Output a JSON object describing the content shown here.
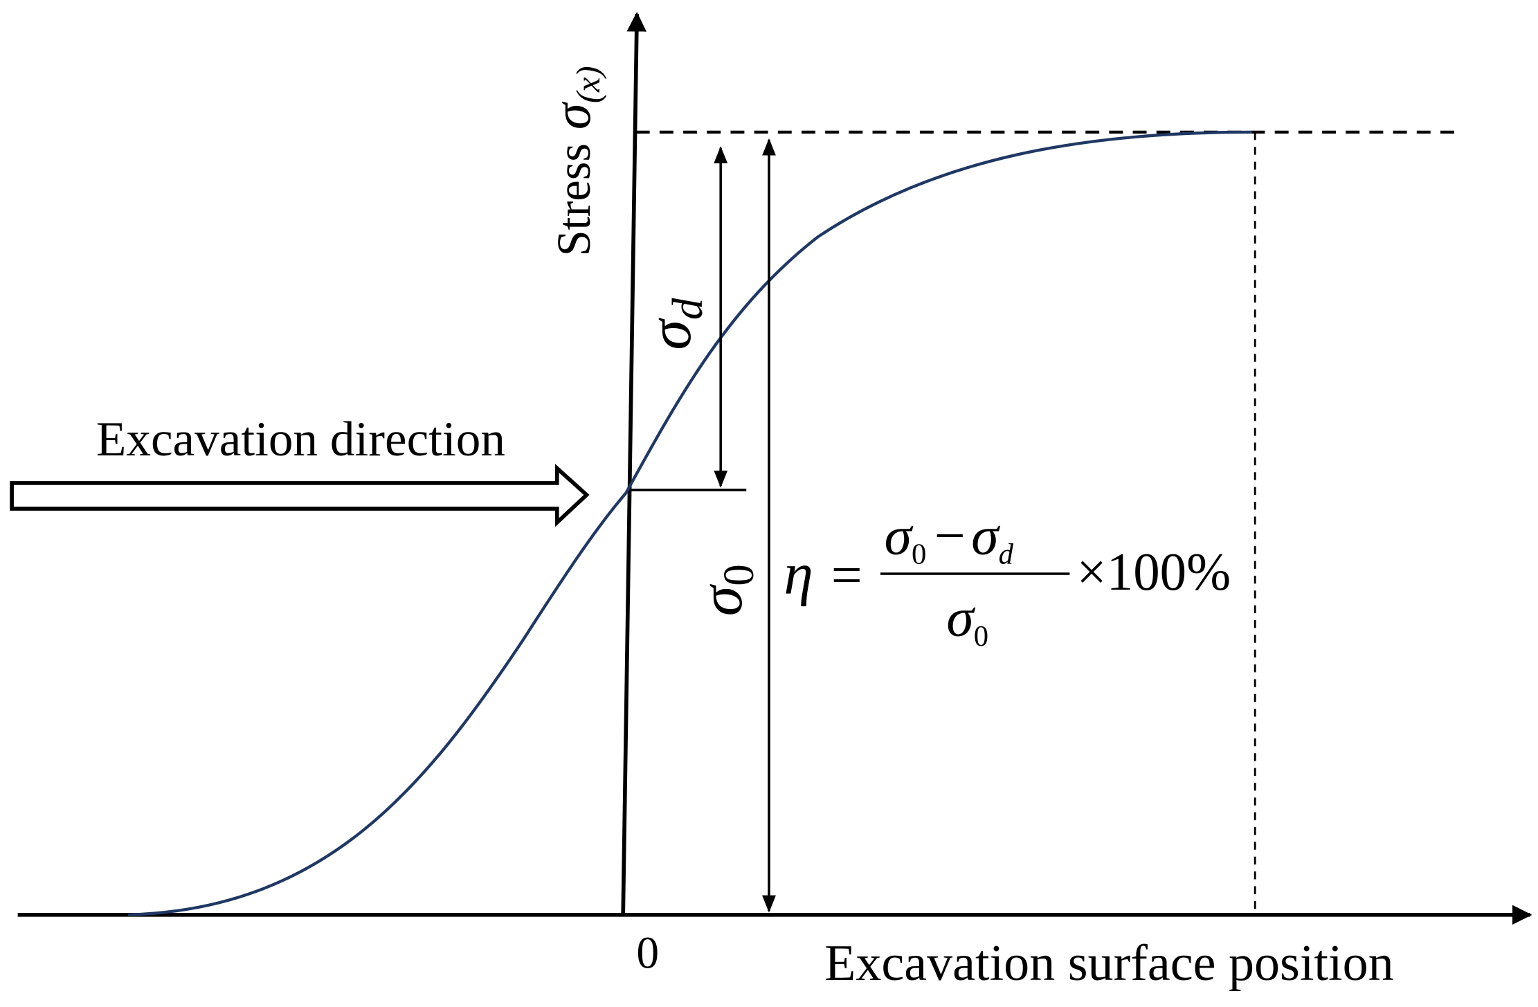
{
  "axes": {
    "y_label": "Stress",
    "y_symbol": "σ",
    "y_symbol_sub": "(x)",
    "x_label": "Excavation surface position",
    "origin": "0"
  },
  "annotations": {
    "sigma_d": {
      "symbol": "σ",
      "sub": "d"
    },
    "sigma_0": {
      "symbol": "σ",
      "sub": "0"
    },
    "direction": "Excavation direction"
  },
  "formula": {
    "lhs": "η",
    "eq": "=",
    "num_a": "σ",
    "num_a_sub": "0",
    "minus": "−",
    "num_b": "σ",
    "num_b_sub": "d",
    "den": "σ",
    "den_sub": "0",
    "times": "×100%"
  }
}
